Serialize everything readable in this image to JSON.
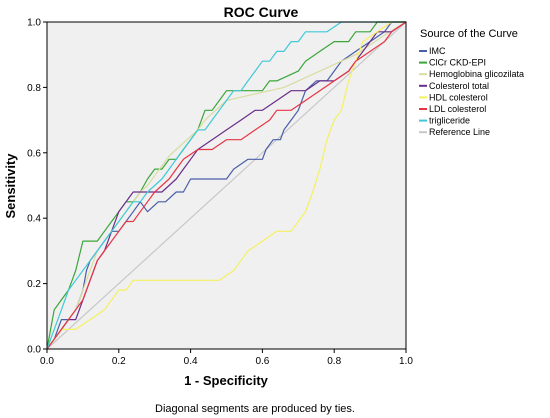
{
  "chart_data": {
    "type": "line",
    "title": "ROC Curve",
    "xlabel": "1 - Specificity",
    "ylabel": "Sensitivity",
    "xlim": [
      0,
      1
    ],
    "ylim": [
      0,
      1
    ],
    "xticks": [
      "0.0",
      "0.2",
      "0.4",
      "0.6",
      "0.8",
      "1.0"
    ],
    "yticks": [
      "0.0",
      "0.2",
      "0.4",
      "0.6",
      "0.8",
      "1.0"
    ],
    "grid": false,
    "legend_title": "Source of the Curve",
    "legend_position": "right",
    "footnote": "Diagonal segments are produced by ties.",
    "plot_background": "#f0f0f0",
    "series": [
      {
        "name": "IMC",
        "color": "#4a5ea8",
        "points": [
          [
            0,
            0
          ],
          [
            0.02,
            0.03
          ],
          [
            0.03,
            0.06
          ],
          [
            0.04,
            0.09
          ],
          [
            0.06,
            0.09
          ],
          [
            0.08,
            0.12
          ],
          [
            0.1,
            0.18
          ],
          [
            0.11,
            0.24
          ],
          [
            0.12,
            0.27
          ],
          [
            0.14,
            0.3
          ],
          [
            0.16,
            0.33
          ],
          [
            0.18,
            0.36
          ],
          [
            0.2,
            0.36
          ],
          [
            0.22,
            0.39
          ],
          [
            0.24,
            0.42
          ],
          [
            0.26,
            0.45
          ],
          [
            0.28,
            0.42
          ],
          [
            0.31,
            0.45
          ],
          [
            0.33,
            0.45
          ],
          [
            0.36,
            0.48
          ],
          [
            0.38,
            0.48
          ],
          [
            0.4,
            0.52
          ],
          [
            0.42,
            0.52
          ],
          [
            0.45,
            0.52
          ],
          [
            0.5,
            0.52
          ],
          [
            0.52,
            0.55
          ],
          [
            0.56,
            0.58
          ],
          [
            0.6,
            0.58
          ],
          [
            0.61,
            0.61
          ],
          [
            0.63,
            0.64
          ],
          [
            0.65,
            0.64
          ],
          [
            0.66,
            0.67
          ],
          [
            0.68,
            0.7
          ],
          [
            0.7,
            0.73
          ],
          [
            0.72,
            0.79
          ],
          [
            0.75,
            0.82
          ],
          [
            0.78,
            0.82
          ],
          [
            0.8,
            0.85
          ],
          [
            0.82,
            0.88
          ],
          [
            0.86,
            0.91
          ],
          [
            0.9,
            0.94
          ],
          [
            0.94,
            0.97
          ],
          [
            0.96,
            1.0
          ],
          [
            1.0,
            1.0
          ]
        ]
      },
      {
        "name": "ClCr CKD-EPI",
        "color": "#3aa63a",
        "points": [
          [
            0,
            0
          ],
          [
            0.01,
            0.06
          ],
          [
            0.02,
            0.12
          ],
          [
            0.04,
            0.15
          ],
          [
            0.06,
            0.18
          ],
          [
            0.07,
            0.21
          ],
          [
            0.08,
            0.24
          ],
          [
            0.1,
            0.33
          ],
          [
            0.12,
            0.33
          ],
          [
            0.14,
            0.33
          ],
          [
            0.16,
            0.36
          ],
          [
            0.18,
            0.39
          ],
          [
            0.2,
            0.42
          ],
          [
            0.22,
            0.45
          ],
          [
            0.24,
            0.45
          ],
          [
            0.26,
            0.48
          ],
          [
            0.28,
            0.52
          ],
          [
            0.3,
            0.55
          ],
          [
            0.32,
            0.55
          ],
          [
            0.34,
            0.58
          ],
          [
            0.36,
            0.58
          ],
          [
            0.38,
            0.61
          ],
          [
            0.4,
            0.64
          ],
          [
            0.42,
            0.67
          ],
          [
            0.44,
            0.73
          ],
          [
            0.46,
            0.73
          ],
          [
            0.48,
            0.76
          ],
          [
            0.5,
            0.79
          ],
          [
            0.52,
            0.79
          ],
          [
            0.55,
            0.79
          ],
          [
            0.58,
            0.79
          ],
          [
            0.6,
            0.79
          ],
          [
            0.62,
            0.82
          ],
          [
            0.64,
            0.82
          ],
          [
            0.7,
            0.85
          ],
          [
            0.72,
            0.88
          ],
          [
            0.76,
            0.91
          ],
          [
            0.8,
            0.94
          ],
          [
            0.84,
            0.94
          ],
          [
            0.86,
            0.97
          ],
          [
            0.9,
            0.97
          ],
          [
            0.92,
            1.0
          ],
          [
            1.0,
            1.0
          ]
        ]
      },
      {
        "name": "Hemoglobina glicozilata",
        "color": "#d9dca0",
        "points": [
          [
            0,
            0
          ],
          [
            0.02,
            0.03
          ],
          [
            0.04,
            0.06
          ],
          [
            0.06,
            0.09
          ],
          [
            0.08,
            0.12
          ],
          [
            0.1,
            0.18
          ],
          [
            0.12,
            0.24
          ],
          [
            0.14,
            0.3
          ],
          [
            0.16,
            0.33
          ],
          [
            0.18,
            0.36
          ],
          [
            0.2,
            0.39
          ],
          [
            0.22,
            0.42
          ],
          [
            0.24,
            0.45
          ],
          [
            0.26,
            0.48
          ],
          [
            0.28,
            0.5
          ],
          [
            0.3,
            0.53
          ],
          [
            0.32,
            0.56
          ],
          [
            0.34,
            0.59
          ],
          [
            0.36,
            0.61
          ],
          [
            0.38,
            0.63
          ],
          [
            0.4,
            0.65
          ],
          [
            0.42,
            0.67
          ],
          [
            0.44,
            0.7
          ],
          [
            0.46,
            0.72
          ],
          [
            0.48,
            0.74
          ],
          [
            0.5,
            0.76
          ],
          [
            0.54,
            0.77
          ],
          [
            0.58,
            0.78
          ],
          [
            0.62,
            0.79
          ],
          [
            0.66,
            0.8
          ],
          [
            0.7,
            0.82
          ],
          [
            0.74,
            0.84
          ],
          [
            0.78,
            0.86
          ],
          [
            0.82,
            0.88
          ],
          [
            0.86,
            0.9
          ],
          [
            0.9,
            0.93
          ],
          [
            0.94,
            0.96
          ],
          [
            0.97,
            0.98
          ],
          [
            1.0,
            1.0
          ]
        ]
      },
      {
        "name": "Colesterol total",
        "color": "#6a2d8a",
        "points": [
          [
            0,
            0
          ],
          [
            0.02,
            0.03
          ],
          [
            0.04,
            0.06
          ],
          [
            0.06,
            0.09
          ],
          [
            0.08,
            0.09
          ],
          [
            0.1,
            0.15
          ],
          [
            0.12,
            0.21
          ],
          [
            0.14,
            0.27
          ],
          [
            0.16,
            0.3
          ],
          [
            0.18,
            0.36
          ],
          [
            0.2,
            0.42
          ],
          [
            0.22,
            0.45
          ],
          [
            0.24,
            0.48
          ],
          [
            0.26,
            0.48
          ],
          [
            0.28,
            0.48
          ],
          [
            0.3,
            0.48
          ],
          [
            0.32,
            0.48
          ],
          [
            0.34,
            0.5
          ],
          [
            0.36,
            0.52
          ],
          [
            0.38,
            0.55
          ],
          [
            0.4,
            0.58
          ],
          [
            0.42,
            0.61
          ],
          [
            0.46,
            0.64
          ],
          [
            0.5,
            0.67
          ],
          [
            0.54,
            0.7
          ],
          [
            0.58,
            0.73
          ],
          [
            0.6,
            0.73
          ],
          [
            0.64,
            0.76
          ],
          [
            0.68,
            0.79
          ],
          [
            0.72,
            0.79
          ],
          [
            0.76,
            0.82
          ],
          [
            0.8,
            0.82
          ],
          [
            0.84,
            0.85
          ],
          [
            0.86,
            0.88
          ],
          [
            0.88,
            0.91
          ],
          [
            0.9,
            0.94
          ],
          [
            0.92,
            0.97
          ],
          [
            0.96,
            0.97
          ],
          [
            1.0,
            1.0
          ]
        ]
      },
      {
        "name": "HDL colesterol",
        "color": "#f5f060",
        "points": [
          [
            0,
            0
          ],
          [
            0.02,
            0.03
          ],
          [
            0.04,
            0.06
          ],
          [
            0.08,
            0.06
          ],
          [
            0.12,
            0.09
          ],
          [
            0.16,
            0.12
          ],
          [
            0.18,
            0.15
          ],
          [
            0.2,
            0.18
          ],
          [
            0.22,
            0.18
          ],
          [
            0.24,
            0.21
          ],
          [
            0.3,
            0.21
          ],
          [
            0.36,
            0.21
          ],
          [
            0.4,
            0.21
          ],
          [
            0.44,
            0.21
          ],
          [
            0.48,
            0.21
          ],
          [
            0.52,
            0.24
          ],
          [
            0.54,
            0.27
          ],
          [
            0.56,
            0.3
          ],
          [
            0.6,
            0.33
          ],
          [
            0.64,
            0.36
          ],
          [
            0.68,
            0.36
          ],
          [
            0.72,
            0.42
          ],
          [
            0.74,
            0.48
          ],
          [
            0.76,
            0.55
          ],
          [
            0.78,
            0.64
          ],
          [
            0.8,
            0.7
          ],
          [
            0.82,
            0.73
          ],
          [
            0.84,
            0.82
          ],
          [
            0.86,
            0.88
          ],
          [
            0.88,
            0.94
          ],
          [
            0.92,
            0.97
          ],
          [
            0.96,
            1.0
          ],
          [
            1.0,
            1.0
          ]
        ]
      },
      {
        "name": "LDL colesterol",
        "color": "#e83545",
        "points": [
          [
            0,
            0
          ],
          [
            0.02,
            0.03
          ],
          [
            0.04,
            0.06
          ],
          [
            0.06,
            0.09
          ],
          [
            0.08,
            0.12
          ],
          [
            0.1,
            0.15
          ],
          [
            0.12,
            0.21
          ],
          [
            0.14,
            0.27
          ],
          [
            0.16,
            0.3
          ],
          [
            0.18,
            0.33
          ],
          [
            0.2,
            0.36
          ],
          [
            0.22,
            0.39
          ],
          [
            0.24,
            0.39
          ],
          [
            0.26,
            0.42
          ],
          [
            0.28,
            0.45
          ],
          [
            0.3,
            0.48
          ],
          [
            0.32,
            0.5
          ],
          [
            0.34,
            0.52
          ],
          [
            0.36,
            0.55
          ],
          [
            0.38,
            0.58
          ],
          [
            0.42,
            0.61
          ],
          [
            0.46,
            0.61
          ],
          [
            0.5,
            0.64
          ],
          [
            0.54,
            0.64
          ],
          [
            0.58,
            0.67
          ],
          [
            0.62,
            0.7
          ],
          [
            0.64,
            0.73
          ],
          [
            0.68,
            0.73
          ],
          [
            0.72,
            0.76
          ],
          [
            0.76,
            0.79
          ],
          [
            0.8,
            0.82
          ],
          [
            0.84,
            0.85
          ],
          [
            0.86,
            0.88
          ],
          [
            0.9,
            0.91
          ],
          [
            0.94,
            0.94
          ],
          [
            0.96,
            0.97
          ],
          [
            1.0,
            1.0
          ]
        ]
      },
      {
        "name": "trigliceride",
        "color": "#40c8d8",
        "points": [
          [
            0,
            0
          ],
          [
            0.02,
            0.06
          ],
          [
            0.04,
            0.12
          ],
          [
            0.06,
            0.18
          ],
          [
            0.08,
            0.21
          ],
          [
            0.1,
            0.24
          ],
          [
            0.12,
            0.27
          ],
          [
            0.14,
            0.3
          ],
          [
            0.16,
            0.33
          ],
          [
            0.18,
            0.36
          ],
          [
            0.2,
            0.39
          ],
          [
            0.22,
            0.42
          ],
          [
            0.24,
            0.45
          ],
          [
            0.26,
            0.45
          ],
          [
            0.28,
            0.48
          ],
          [
            0.3,
            0.5
          ],
          [
            0.32,
            0.52
          ],
          [
            0.34,
            0.55
          ],
          [
            0.36,
            0.58
          ],
          [
            0.38,
            0.61
          ],
          [
            0.4,
            0.64
          ],
          [
            0.42,
            0.67
          ],
          [
            0.44,
            0.67
          ],
          [
            0.46,
            0.7
          ],
          [
            0.48,
            0.73
          ],
          [
            0.5,
            0.76
          ],
          [
            0.52,
            0.79
          ],
          [
            0.54,
            0.79
          ],
          [
            0.56,
            0.82
          ],
          [
            0.58,
            0.85
          ],
          [
            0.6,
            0.88
          ],
          [
            0.62,
            0.88
          ],
          [
            0.64,
            0.91
          ],
          [
            0.66,
            0.91
          ],
          [
            0.68,
            0.94
          ],
          [
            0.7,
            0.94
          ],
          [
            0.72,
            0.97
          ],
          [
            0.78,
            0.97
          ],
          [
            0.82,
            1.0
          ],
          [
            1.0,
            1.0
          ]
        ]
      },
      {
        "name": "Reference Line",
        "color": "#c8c8c8",
        "points": [
          [
            0,
            0
          ],
          [
            1,
            1
          ]
        ]
      }
    ]
  }
}
